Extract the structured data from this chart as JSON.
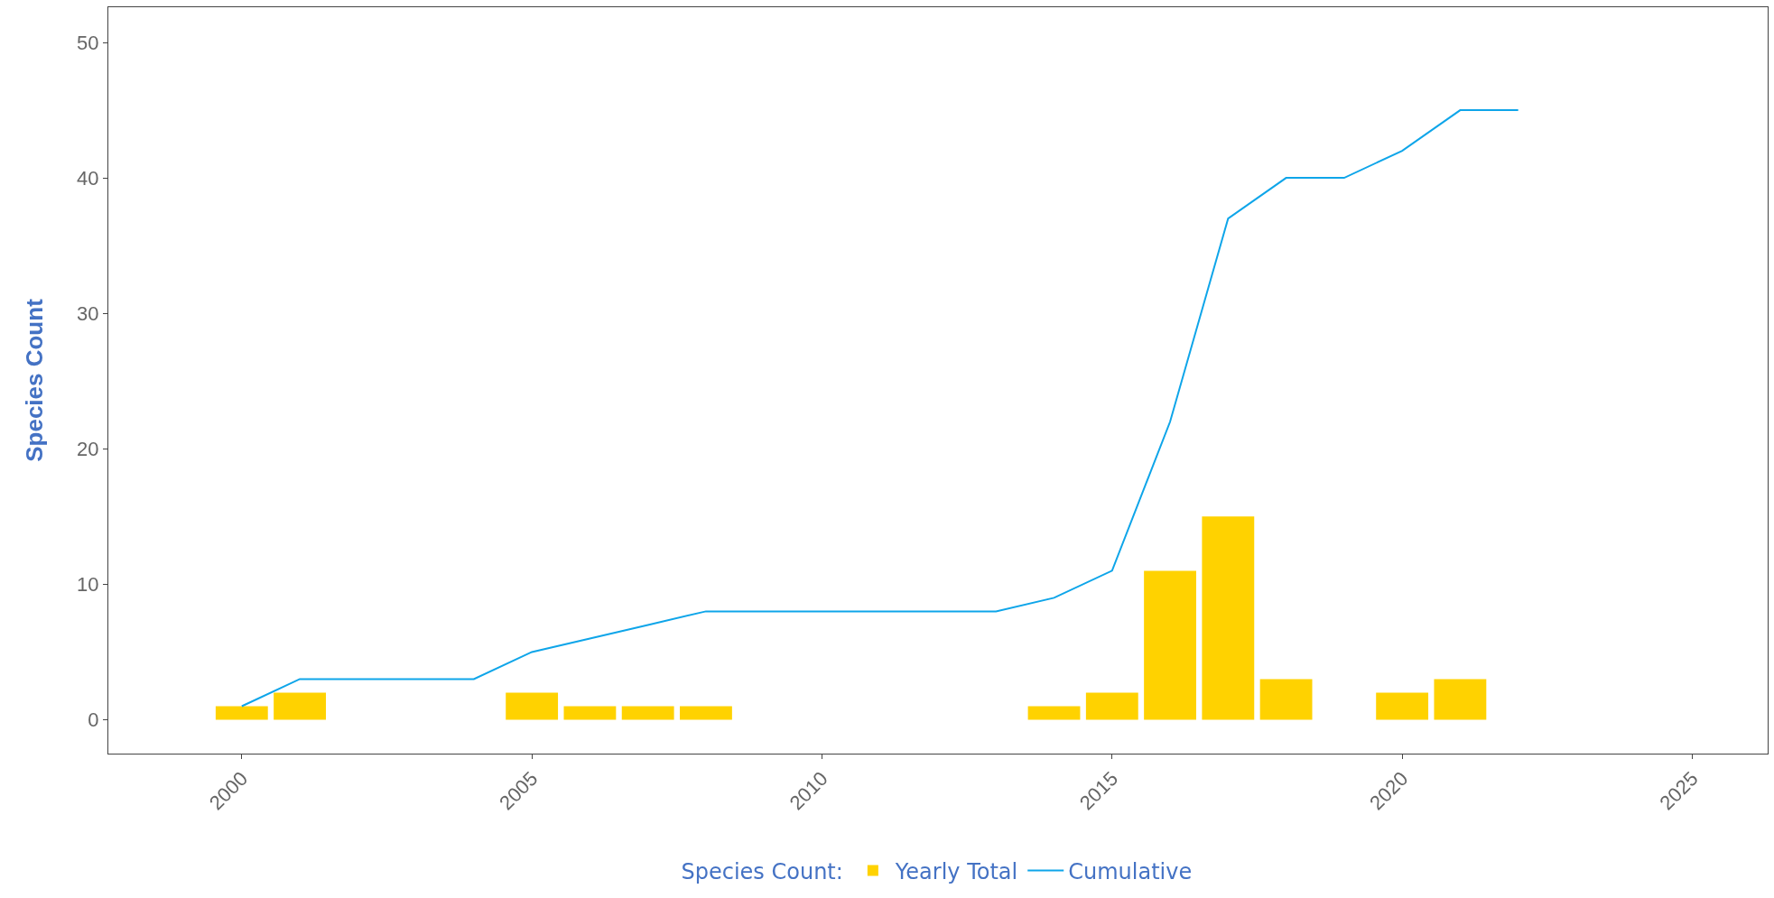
{
  "chart_data": {
    "type": "bar",
    "ylabel": "Species Count",
    "legend_title": "Species Count:",
    "series": [
      {
        "name": "Yearly Total",
        "color": "#ffd200",
        "x": [
          2000,
          2001,
          2005,
          2006,
          2007,
          2008,
          2014,
          2015,
          2016,
          2017,
          2018,
          2020,
          2021
        ],
        "values": [
          1,
          2,
          2,
          1,
          1,
          1,
          1,
          2,
          11,
          15,
          3,
          2,
          3
        ]
      },
      {
        "name": "Cumulative",
        "type": "line",
        "color": "#0ea5e9",
        "x": [
          2000,
          2001,
          2002,
          2003,
          2004,
          2005,
          2006,
          2007,
          2008,
          2009,
          2010,
          2011,
          2012,
          2013,
          2014,
          2015,
          2016,
          2017,
          2018,
          2019,
          2020,
          2021,
          2022
        ],
        "values": [
          1,
          3,
          3,
          3,
          3,
          5,
          6,
          7,
          8,
          8,
          8,
          8,
          8,
          8,
          9,
          11,
          22,
          37,
          40,
          40,
          42,
          45,
          45
        ]
      }
    ],
    "xlim": [
      1997.7,
      2026.3
    ],
    "xticks": [
      2000,
      2005,
      2010,
      2015,
      2020,
      2025
    ],
    "ylim": [
      -2.5,
      52.6
    ],
    "yticks": [
      0,
      10,
      20,
      30,
      40,
      50
    ],
    "grid": false,
    "legend": "bottom",
    "marker": "none",
    "line_style": "solid"
  }
}
